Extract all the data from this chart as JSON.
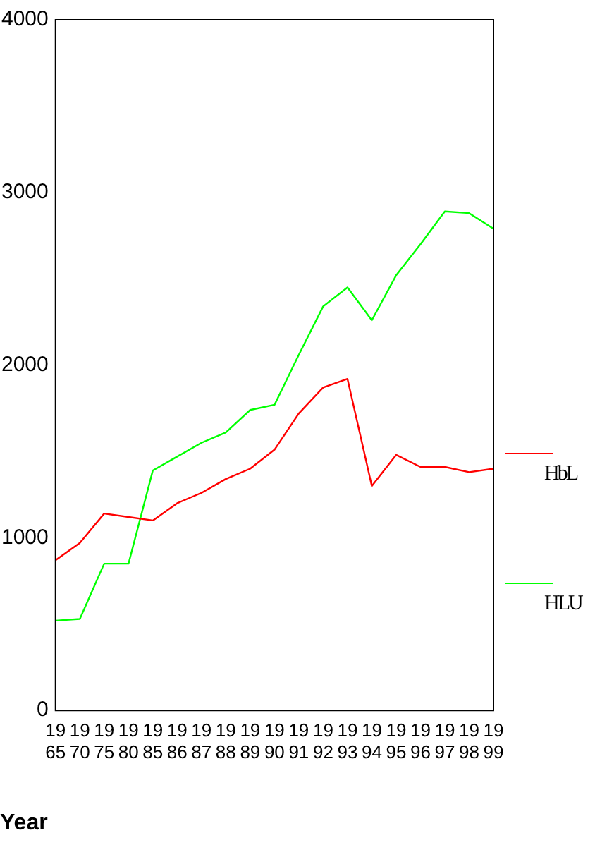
{
  "chart_data": {
    "type": "line",
    "xlabel": "Year",
    "categories": [
      "1965",
      "1970",
      "1975",
      "1980",
      "1985",
      "1986",
      "1987",
      "1988",
      "1989",
      "1990",
      "1991",
      "1992",
      "1993",
      "1994",
      "1995",
      "1996",
      "1997",
      "1998",
      "1999"
    ],
    "series": [
      {
        "name": "HbL",
        "color": "#ff0000",
        "values": [
          870,
          970,
          1140,
          1120,
          1100,
          1200,
          1260,
          1340,
          1400,
          1510,
          1720,
          1870,
          1920,
          1300,
          1480,
          1410,
          1410,
          1380,
          1400
        ]
      },
      {
        "name": "HLU",
        "color": "#00ff00",
        "values": [
          520,
          530,
          850,
          850,
          1390,
          1470,
          1550,
          1610,
          1740,
          1770,
          2060,
          2340,
          2450,
          2260,
          2520,
          2700,
          2890,
          2880,
          2790
        ]
      }
    ],
    "ylim": [
      0,
      4000
    ],
    "yticks": [
      0,
      1000,
      2000,
      3000,
      4000
    ],
    "grid": false,
    "legend": "right",
    "marker": "none",
    "line_style": "solid"
  }
}
